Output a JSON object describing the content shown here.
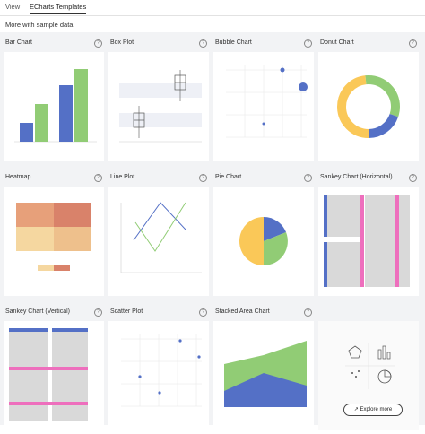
{
  "tabs": [
    {
      "label": "View"
    },
    {
      "label": "ECharts Templates"
    }
  ],
  "subheading": "More with sample data",
  "cards": [
    {
      "title": "Bar Chart"
    },
    {
      "title": "Box Plot"
    },
    {
      "title": "Bubble Chart"
    },
    {
      "title": "Donut Chart"
    },
    {
      "title": "Heatmap"
    },
    {
      "title": "Line Plot"
    },
    {
      "title": "Pie Chart"
    },
    {
      "title": "Sankey Chart (Horizontal)"
    },
    {
      "title": "Sankey Chart (Vertical)"
    },
    {
      "title": "Scatter Plot"
    },
    {
      "title": "Stacked Area Chart"
    }
  ],
  "help_glyph": "?",
  "explore_button": {
    "label": "Explore more",
    "icon": "external-link-icon"
  },
  "colors": {
    "blue": "#5470c6",
    "green": "#91cc75",
    "yellow": "#fac858",
    "pink": "#ee6fbd",
    "grey": "#d9d9d9"
  }
}
